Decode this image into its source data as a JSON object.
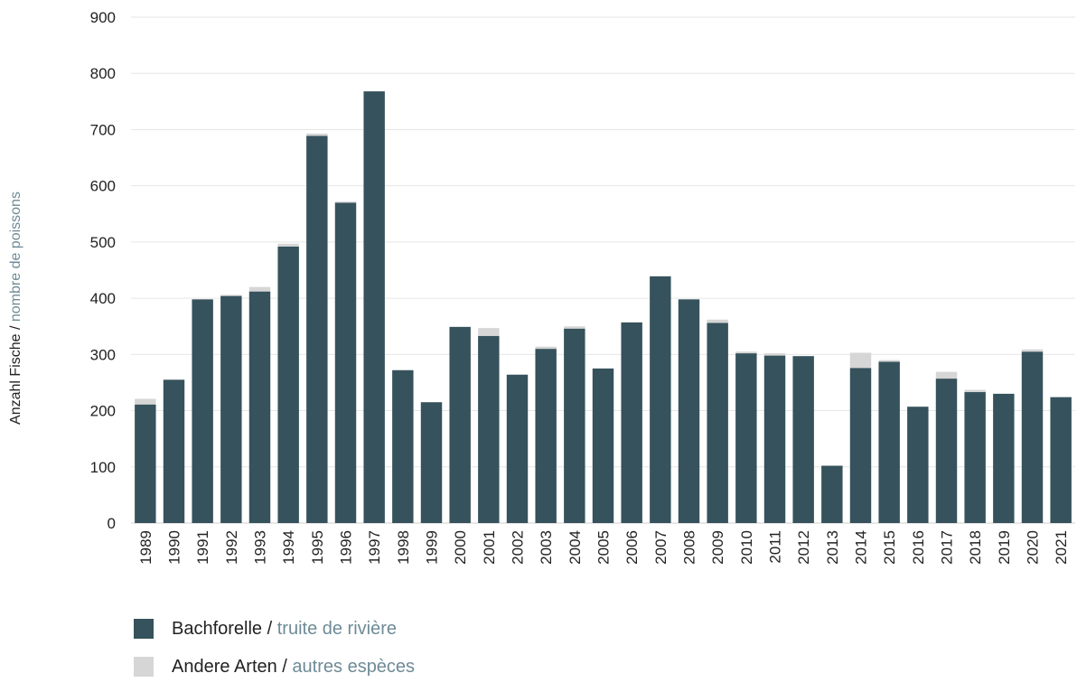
{
  "colors": {
    "bachforelle": "#36525c",
    "andere": "#d6d6d6",
    "label_primary": "#222222",
    "label_secondary": "#6e8b96",
    "grid": "#e6e6e6"
  },
  "chart_data": {
    "type": "bar",
    "stacked": true,
    "ylabel": {
      "primary": "Anzahl Fische",
      "separator": " / ",
      "secondary": "nombre de poissons"
    },
    "ylim": [
      0,
      900
    ],
    "yticks": [
      0,
      100,
      200,
      300,
      400,
      500,
      600,
      700,
      800,
      900
    ],
    "grid": true,
    "legend_position": "bottom-left",
    "categories": [
      "1989",
      "1990",
      "1991",
      "1992",
      "1993",
      "1994",
      "1995",
      "1996",
      "1997",
      "1998",
      "1999",
      "2000",
      "2001",
      "2002",
      "2003",
      "2004",
      "2005",
      "2006",
      "2007",
      "2008",
      "2009",
      "2010",
      "2011",
      "2012",
      "2013",
      "2014",
      "2015",
      "2016",
      "2017",
      "2018",
      "2019",
      "2020",
      "2021"
    ],
    "series": [
      {
        "name": "Bachforelle / truite de rivière",
        "name_primary": "Bachforelle",
        "separator": " / ",
        "name_secondary": "truite de rivière",
        "values": [
          211,
          255,
          398,
          404,
          412,
          492,
          689,
          570,
          768,
          272,
          215,
          349,
          333,
          264,
          310,
          346,
          275,
          357,
          439,
          398,
          356,
          302,
          298,
          297,
          102,
          276,
          287,
          207,
          257,
          233,
          230,
          305,
          224
        ]
      },
      {
        "name": "Andere Arten / autres espèces",
        "name_primary": "Andere Arten",
        "separator": " / ",
        "name_secondary": "autres espèces",
        "values": [
          10,
          0,
          0,
          2,
          8,
          5,
          4,
          2,
          0,
          0,
          0,
          0,
          14,
          0,
          4,
          4,
          0,
          0,
          0,
          0,
          6,
          3,
          4,
          0,
          0,
          27,
          3,
          0,
          12,
          4,
          0,
          4,
          0
        ]
      }
    ]
  }
}
